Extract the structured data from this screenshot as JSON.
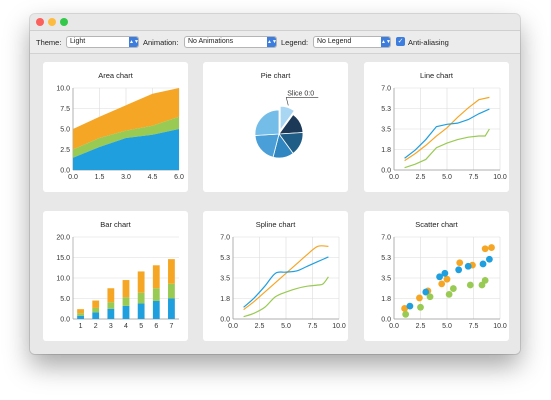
{
  "window": {
    "traffic_colors": [
      "#fc605c",
      "#fdbc40",
      "#34c84a"
    ]
  },
  "toolbar": {
    "theme_label": "Theme:",
    "theme_value": "Light",
    "animation_label": "Animation:",
    "animation_value": "No Animations",
    "legend_label": "Legend:",
    "legend_value": "No Legend",
    "antialias_label": "Anti-aliasing",
    "antialias_checked": true
  },
  "colors": {
    "blue": "#209fdf",
    "green": "#99ca53",
    "orange": "#f6a625",
    "pie": [
      "#1c3a57",
      "#1f5d87",
      "#2f86c1",
      "#4a9fd8",
      "#74bde8",
      "#a8d6f3"
    ]
  },
  "cards": {
    "area": {
      "title": "Area chart"
    },
    "pie": {
      "title": "Pie chart",
      "label": "Slice 0:0"
    },
    "line": {
      "title": "Line chart"
    },
    "bar": {
      "title": "Bar chart"
    },
    "spline": {
      "title": "Spline chart"
    },
    "scatter": {
      "title": "Scatter chart"
    }
  },
  "chart_data": [
    {
      "id": "area",
      "type": "area",
      "title": "Area chart",
      "stacked": true,
      "x": [
        0,
        1.5,
        3,
        4.5,
        6
      ],
      "xlim": [
        0,
        6
      ],
      "ylim": [
        0,
        10
      ],
      "xticks": [
        "0.0",
        "1.5",
        "3.0",
        "4.5",
        "6.0"
      ],
      "yticks": [
        "0.0",
        "2.5",
        "5.0",
        "7.5",
        "10.0"
      ],
      "series": [
        {
          "color": "blue",
          "values": [
            1.5,
            2.8,
            3.9,
            4.3,
            5.0
          ]
        },
        {
          "color": "green",
          "values": [
            1.0,
            1.1,
            0.9,
            1.1,
            1.5
          ]
        },
        {
          "color": "orange",
          "values": [
            2.5,
            2.6,
            3.1,
            3.9,
            3.5
          ]
        }
      ]
    },
    {
      "id": "pie",
      "type": "pie",
      "title": "Pie chart",
      "annotation": "Slice 0:0",
      "slices": [
        {
          "label": "Slice 0:0",
          "value": 10,
          "exploded": true
        },
        {
          "value": 14
        },
        {
          "value": 16
        },
        {
          "value": 14
        },
        {
          "value": 20
        },
        {
          "value": 26
        }
      ]
    },
    {
      "id": "line",
      "type": "line",
      "title": "Line chart",
      "xlim": [
        0,
        10
      ],
      "ylim": [
        0,
        7
      ],
      "xticks": [
        "0.0",
        "2.5",
        "5.0",
        "7.5",
        "10.0"
      ],
      "yticks": [
        "0.0",
        "1.8",
        "3.5",
        "5.3",
        "7.0"
      ],
      "series": [
        {
          "color": "orange",
          "x": [
            1,
            2,
            3,
            4,
            5,
            6,
            7,
            8,
            9
          ],
          "y": [
            0.8,
            1.4,
            2.1,
            2.9,
            3.6,
            4.5,
            5.3,
            6.0,
            6.2
          ]
        },
        {
          "color": "blue",
          "x": [
            1,
            2,
            3,
            4,
            5,
            6,
            7,
            8,
            9
          ],
          "y": [
            1.0,
            1.7,
            2.6,
            3.7,
            3.9,
            4.0,
            4.3,
            4.8,
            5.2
          ]
        },
        {
          "color": "green",
          "x": [
            1,
            2,
            3,
            4,
            5,
            6,
            7,
            8,
            8.6,
            9
          ],
          "y": [
            0.2,
            0.5,
            0.9,
            1.9,
            2.3,
            2.6,
            2.8,
            2.9,
            2.9,
            3.5
          ]
        }
      ]
    },
    {
      "id": "bar",
      "type": "bar",
      "title": "Bar chart",
      "stacked": true,
      "categories": [
        "1",
        "2",
        "3",
        "4",
        "5",
        "6",
        "7"
      ],
      "ylim": [
        0,
        20
      ],
      "yticks": [
        "0.0",
        "5.0",
        "10.0",
        "15.0",
        "20.0"
      ],
      "series": [
        {
          "color": "blue",
          "values": [
            0.8,
            1.6,
            2.5,
            3.2,
            3.8,
            4.4,
            5.0
          ]
        },
        {
          "color": "green",
          "values": [
            0.6,
            1.1,
            1.6,
            2.1,
            2.6,
            3.1,
            3.6
          ]
        },
        {
          "color": "orange",
          "values": [
            1.0,
            1.8,
            3.4,
            4.2,
            5.2,
            5.6,
            6.0
          ]
        }
      ]
    },
    {
      "id": "spline",
      "type": "line",
      "smooth": true,
      "title": "Spline chart",
      "xlim": [
        0,
        10
      ],
      "ylim": [
        0,
        7
      ],
      "xticks": [
        "0.0",
        "2.5",
        "5.0",
        "7.5",
        "10.0"
      ],
      "yticks": [
        "0.0",
        "1.8",
        "3.5",
        "5.3",
        "7.0"
      ],
      "series": [
        {
          "color": "orange",
          "x": [
            1,
            2,
            3,
            4,
            5,
            6,
            7,
            8,
            9
          ],
          "y": [
            0.8,
            1.5,
            2.3,
            3.1,
            3.9,
            4.7,
            5.5,
            6.2,
            6.2
          ]
        },
        {
          "color": "blue",
          "x": [
            1,
            2,
            3,
            4,
            5,
            6,
            7,
            8,
            9
          ],
          "y": [
            1.0,
            1.8,
            2.8,
            3.9,
            4.0,
            4.1,
            4.5,
            4.9,
            5.3
          ]
        },
        {
          "color": "green",
          "x": [
            1,
            2,
            3,
            4,
            5,
            6,
            7,
            8,
            8.5,
            9
          ],
          "y": [
            0.2,
            0.5,
            1.0,
            1.9,
            2.3,
            2.6,
            2.8,
            2.9,
            3.0,
            3.6
          ]
        }
      ]
    },
    {
      "id": "scatter",
      "type": "scatter",
      "title": "Scatter chart",
      "xlim": [
        0,
        10
      ],
      "ylim": [
        0,
        7
      ],
      "xticks": [
        "0.0",
        "2.5",
        "5.0",
        "7.5",
        "10.0"
      ],
      "yticks": [
        "0.0",
        "1.8",
        "3.5",
        "5.3",
        "7.0"
      ],
      "series": [
        {
          "color": "orange",
          "x": [
            1.0,
            2.4,
            3.2,
            4.5,
            5.0,
            6.2,
            7.4,
            8.6,
            9.2
          ],
          "y": [
            0.9,
            1.8,
            2.4,
            3.0,
            3.4,
            4.8,
            4.6,
            6.0,
            6.1
          ]
        },
        {
          "color": "blue",
          "x": [
            1.5,
            3.0,
            4.3,
            4.8,
            6.1,
            7.0,
            8.4,
            9.0
          ],
          "y": [
            1.1,
            2.3,
            3.6,
            3.9,
            4.2,
            4.5,
            4.7,
            5.1
          ]
        },
        {
          "color": "green",
          "x": [
            1.1,
            2.5,
            3.4,
            5.2,
            5.6,
            7.2,
            8.3,
            8.6
          ],
          "y": [
            0.4,
            1.0,
            1.9,
            2.1,
            2.6,
            2.9,
            2.9,
            3.3
          ]
        }
      ]
    }
  ]
}
